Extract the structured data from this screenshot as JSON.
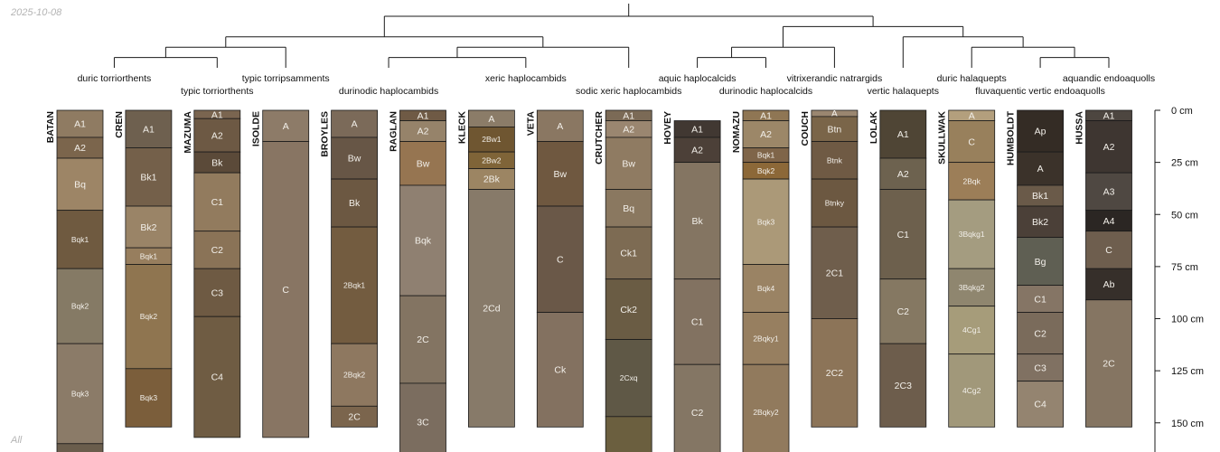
{
  "meta": {
    "date": "2025-10-08",
    "corner_label": "All"
  },
  "axis": {
    "max_depth_cm": 168,
    "ticks": [
      0,
      25,
      50,
      75,
      100,
      125,
      150
    ],
    "unit": "cm"
  },
  "dendrogram": {
    "leaves": [
      {
        "id": "duric_torriorthents",
        "label": "duric torriorthents",
        "level": 1,
        "members": [
          "BATAN",
          "CREN"
        ]
      },
      {
        "id": "typic_torriorthents",
        "label": "typic torriorthents",
        "level": 2,
        "members": [
          "MAZUMA"
        ]
      },
      {
        "id": "typic_torripsamments",
        "label": "typic torripsamments",
        "level": 1,
        "members": [
          "ISOLDE"
        ]
      },
      {
        "id": "durinodic_haplocambids",
        "label": "durinodic haplocambids",
        "level": 2,
        "members": [
          "BROYLES",
          "RAGLAN"
        ]
      },
      {
        "id": "xeric_haplocambids",
        "label": "xeric haplocambids",
        "level": 1,
        "members": [
          "KLECK",
          "VETA"
        ]
      },
      {
        "id": "sodic_xeric_haplocambids",
        "label": "sodic xeric haplocambids",
        "level": 2,
        "members": [
          "CRUTCHER"
        ]
      },
      {
        "id": "aquic_haplocalcids",
        "label": "aquic haplocalcids",
        "level": 1,
        "members": [
          "HOVEY"
        ]
      },
      {
        "id": "durinodic_haplocalcids",
        "label": "durinodic haplocalcids",
        "level": 2,
        "members": [
          "NOMAZU"
        ]
      },
      {
        "id": "vitrixerandic_natrargids",
        "label": "vitrixerandic natrargids",
        "level": 1,
        "members": [
          "COUCH"
        ]
      },
      {
        "id": "vertic_halaquepts",
        "label": "vertic halaquepts",
        "level": 2,
        "members": [
          "LOLAK"
        ]
      },
      {
        "id": "duric_halaquepts",
        "label": "duric halaquepts",
        "level": 1,
        "members": [
          "SKULLWAK"
        ]
      },
      {
        "id": "fluvaquentic_vertic_endoaquolls",
        "label": "fluvaquentic vertic endoaquolls",
        "level": 2,
        "members": [
          "HUMBOLDT"
        ]
      },
      {
        "id": "aquandic_endoaquolls",
        "label": "aquandic endoaquolls",
        "level": 1,
        "members": [
          "HUSSA"
        ]
      }
    ],
    "tree": [
      [
        [
          [
            [
              "duric_torriorthents"
            ],
            [
              "typic_torriorthents"
            ]
          ],
          [
            "typic_torripsamments"
          ]
        ],
        [
          [
            [
              "durinodic_haplocambids"
            ],
            [
              "xeric_haplocambids"
            ]
          ],
          [
            "sodic_xeric_haplocambids"
          ]
        ]
      ],
      [
        [
          [
            [
              "aquic_haplocalcids"
            ],
            [
              "durinodic_haplocalcids"
            ]
          ],
          [
            "vitrixerandic_natrargids"
          ]
        ],
        [
          [
            "vertic_halaquepts"
          ],
          [
            [
              "duric_halaquepts"
            ],
            [
              [
                "fluvaquentic_vertic_endoaquolls"
              ],
              [
                "aquandic_endoaquolls"
              ]
            ]
          ]
        ]
      ]
    ]
  },
  "profiles": [
    {
      "name": "BATAN",
      "horizons": [
        {
          "name": "A1",
          "top": 0,
          "bottom": 13,
          "color": "#8f7b62"
        },
        {
          "name": "A2",
          "top": 13,
          "bottom": 23,
          "color": "#7b654c"
        },
        {
          "name": "Bq",
          "top": 23,
          "bottom": 48,
          "color": "#9d8566"
        },
        {
          "name": "Bqk1",
          "top": 48,
          "bottom": 76,
          "color": "#6f5a40"
        },
        {
          "name": "Bqk2",
          "top": 76,
          "bottom": 112,
          "color": "#857a65"
        },
        {
          "name": "Bqk3",
          "top": 112,
          "bottom": 160,
          "color": "#8b7b68"
        },
        {
          "name": "",
          "top": 160,
          "bottom": 168,
          "color": "#6a5d4c"
        }
      ]
    },
    {
      "name": "CREN",
      "horizons": [
        {
          "name": "A1",
          "top": 0,
          "bottom": 18,
          "color": "#6e604f"
        },
        {
          "name": "Bk1",
          "top": 18,
          "bottom": 46,
          "color": "#74604a"
        },
        {
          "name": "Bk2",
          "top": 46,
          "bottom": 66,
          "color": "#9a8467"
        },
        {
          "name": "Bqk1",
          "top": 66,
          "bottom": 74,
          "color": "#977e5e"
        },
        {
          "name": "Bqk2",
          "top": 74,
          "bottom": 124,
          "color": "#8f7550"
        },
        {
          "name": "Bqk3",
          "top": 124,
          "bottom": 152,
          "color": "#7b5e3b"
        }
      ]
    },
    {
      "name": "MAZUMA",
      "horizons": [
        {
          "name": "A1",
          "top": 0,
          "bottom": 4,
          "color": "#7a6550"
        },
        {
          "name": "A2",
          "top": 4,
          "bottom": 20,
          "color": "#6d5944"
        },
        {
          "name": "Bk",
          "top": 20,
          "bottom": 30,
          "color": "#5b4a39"
        },
        {
          "name": "C1",
          "top": 30,
          "bottom": 58,
          "color": "#927b5e"
        },
        {
          "name": "C2",
          "top": 58,
          "bottom": 76,
          "color": "#8a7357"
        },
        {
          "name": "C3",
          "top": 76,
          "bottom": 99,
          "color": "#6e5a43"
        },
        {
          "name": "C4",
          "top": 99,
          "bottom": 157,
          "color": "#6f5c43"
        }
      ]
    },
    {
      "name": "ISOLDE",
      "horizons": [
        {
          "name": "A",
          "top": 0,
          "bottom": 15,
          "color": "#8d7b68"
        },
        {
          "name": "C",
          "top": 15,
          "bottom": 157,
          "color": "#887563"
        }
      ]
    },
    {
      "name": "BROYLES",
      "horizons": [
        {
          "name": "A",
          "top": 0,
          "bottom": 13,
          "color": "#7b6a59"
        },
        {
          "name": "Bw",
          "top": 13,
          "bottom": 33,
          "color": "#675646"
        },
        {
          "name": "Bk",
          "top": 33,
          "bottom": 56,
          "color": "#6c5842"
        },
        {
          "name": "2Bqk1",
          "top": 56,
          "bottom": 112,
          "color": "#735c40"
        },
        {
          "name": "2Bqk2",
          "top": 112,
          "bottom": 142,
          "color": "#8e7860"
        },
        {
          "name": "2C",
          "top": 142,
          "bottom": 152,
          "color": "#7b654d"
        }
      ]
    },
    {
      "name": "RAGLAN",
      "horizons": [
        {
          "name": "A1",
          "top": 0,
          "bottom": 5,
          "color": "#6f5a45"
        },
        {
          "name": "A2",
          "top": 5,
          "bottom": 15,
          "color": "#96836a"
        },
        {
          "name": "Bw",
          "top": 15,
          "bottom": 36,
          "color": "#967551"
        },
        {
          "name": "Bqk",
          "top": 36,
          "bottom": 89,
          "color": "#8f8071"
        },
        {
          "name": "2C",
          "top": 89,
          "bottom": 131,
          "color": "#837462"
        },
        {
          "name": "3C",
          "top": 131,
          "bottom": 168,
          "color": "#7b6d5f"
        }
      ]
    },
    {
      "name": "KLECK",
      "horizons": [
        {
          "name": "A",
          "top": 0,
          "bottom": 8,
          "color": "#8b7c68"
        },
        {
          "name": "2Bw1",
          "top": 8,
          "bottom": 20,
          "color": "#6f5631"
        },
        {
          "name": "2Bw2",
          "top": 20,
          "bottom": 28,
          "color": "#7f6438"
        },
        {
          "name": "2Bk",
          "top": 28,
          "bottom": 38,
          "color": "#9c8563"
        },
        {
          "name": "2Cd",
          "top": 38,
          "bottom": 152,
          "color": "#877a69"
        }
      ]
    },
    {
      "name": "VETA",
      "horizons": [
        {
          "name": "A",
          "top": 0,
          "bottom": 15,
          "color": "#8a7762"
        },
        {
          "name": "Bw",
          "top": 15,
          "bottom": 46,
          "color": "#6f5840"
        },
        {
          "name": "C",
          "top": 46,
          "bottom": 97,
          "color": "#6a5848"
        },
        {
          "name": "Ck",
          "top": 97,
          "bottom": 152,
          "color": "#837160"
        }
      ]
    },
    {
      "name": "CRUTCHER",
      "horizons": [
        {
          "name": "A1",
          "top": 0,
          "bottom": 5,
          "color": "#7b6a56"
        },
        {
          "name": "A2",
          "top": 5,
          "bottom": 13,
          "color": "#9a8670"
        },
        {
          "name": "Bw",
          "top": 13,
          "bottom": 38,
          "color": "#8f7b62"
        },
        {
          "name": "Bq",
          "top": 38,
          "bottom": 56,
          "color": "#8a7860"
        },
        {
          "name": "Ck1",
          "top": 56,
          "bottom": 81,
          "color": "#7d6b53"
        },
        {
          "name": "Ck2",
          "top": 81,
          "bottom": 110,
          "color": "#6a5c44"
        },
        {
          "name": "2Cxq",
          "top": 110,
          "bottom": 147,
          "color": "#5f5846"
        },
        {
          "name": "",
          "top": 147,
          "bottom": 168,
          "color": "#6b5f3f"
        }
      ]
    },
    {
      "name": "HOVEY",
      "horizons": [
        {
          "name": "A1",
          "top": 5,
          "bottom": 13,
          "color": "#413832"
        },
        {
          "name": "A2",
          "top": 13,
          "bottom": 25,
          "color": "#4c4038"
        },
        {
          "name": "Bk",
          "top": 25,
          "bottom": 81,
          "color": "#847562"
        },
        {
          "name": "C1",
          "top": 81,
          "bottom": 122,
          "color": "#827261"
        },
        {
          "name": "C2",
          "top": 122,
          "bottom": 168,
          "color": "#847664"
        }
      ]
    },
    {
      "name": "NOMAZU",
      "horizons": [
        {
          "name": "A1",
          "top": 0,
          "bottom": 5,
          "color": "#8f7654"
        },
        {
          "name": "A2",
          "top": 5,
          "bottom": 18,
          "color": "#9c8768"
        },
        {
          "name": "Bqk1",
          "top": 18,
          "bottom": 25,
          "color": "#7f6549"
        },
        {
          "name": "Bqk2",
          "top": 25,
          "bottom": 33,
          "color": "#8c6838"
        },
        {
          "name": "Bqk3",
          "top": 33,
          "bottom": 74,
          "color": "#ab9978"
        },
        {
          "name": "Bqk4",
          "top": 74,
          "bottom": 97,
          "color": "#9a8364"
        },
        {
          "name": "2Bqky1",
          "top": 97,
          "bottom": 122,
          "color": "#977f60"
        },
        {
          "name": "2Bqky2",
          "top": 122,
          "bottom": 168,
          "color": "#917a5d"
        }
      ]
    },
    {
      "name": "COUCH",
      "horizons": [
        {
          "name": "A",
          "top": 0,
          "bottom": 3,
          "color": "#9a8670"
        },
        {
          "name": "Btn",
          "top": 3,
          "bottom": 15,
          "color": "#7a6549"
        },
        {
          "name": "Btnk",
          "top": 15,
          "bottom": 33,
          "color": "#6f5a44"
        },
        {
          "name": "Btnky",
          "top": 33,
          "bottom": 56,
          "color": "#6c5841"
        },
        {
          "name": "2C1",
          "top": 56,
          "bottom": 100,
          "color": "#6f5e4c"
        },
        {
          "name": "2C2",
          "top": 100,
          "bottom": 152,
          "color": "#8c7458"
        }
      ]
    },
    {
      "name": "LOLAK",
      "horizons": [
        {
          "name": "A1",
          "top": 0,
          "bottom": 23,
          "color": "#4f4535"
        },
        {
          "name": "A2",
          "top": 23,
          "bottom": 38,
          "color": "#6d624f"
        },
        {
          "name": "C1",
          "top": 38,
          "bottom": 81,
          "color": "#6d604d"
        },
        {
          "name": "C2",
          "top": 81,
          "bottom": 112,
          "color": "#857862"
        },
        {
          "name": "2C3",
          "top": 112,
          "bottom": 152,
          "color": "#6d5d4c"
        }
      ]
    },
    {
      "name": "SKULLWAK",
      "horizons": [
        {
          "name": "A",
          "top": 0,
          "bottom": 5,
          "color": "#b39f7d"
        },
        {
          "name": "C",
          "top": 5,
          "bottom": 25,
          "color": "#98805c"
        },
        {
          "name": "2Bqk",
          "top": 25,
          "bottom": 43,
          "color": "#9c7e58"
        },
        {
          "name": "3Bqkg1",
          "top": 43,
          "bottom": 76,
          "color": "#a49c80"
        },
        {
          "name": "3Bqkg2",
          "top": 76,
          "bottom": 94,
          "color": "#8f866f"
        },
        {
          "name": "4Cg1",
          "top": 94,
          "bottom": 117,
          "color": "#a69c7a"
        },
        {
          "name": "4Cg2",
          "top": 117,
          "bottom": 152,
          "color": "#a1987a"
        }
      ]
    },
    {
      "name": "HUMBOLDT",
      "horizons": [
        {
          "name": "Ap",
          "top": 0,
          "bottom": 20,
          "color": "#342c25"
        },
        {
          "name": "A",
          "top": 20,
          "bottom": 36,
          "color": "#3b322a"
        },
        {
          "name": "Bk1",
          "top": 36,
          "bottom": 46,
          "color": "#6a5a49"
        },
        {
          "name": "Bk2",
          "top": 46,
          "bottom": 61,
          "color": "#4b4038"
        },
        {
          "name": "Bg",
          "top": 61,
          "bottom": 84,
          "color": "#5f5f53"
        },
        {
          "name": "C1",
          "top": 84,
          "bottom": 97,
          "color": "#857565"
        },
        {
          "name": "C2",
          "top": 97,
          "bottom": 117,
          "color": "#7a6b5b"
        },
        {
          "name": "C3",
          "top": 117,
          "bottom": 130,
          "color": "#807162"
        },
        {
          "name": "C4",
          "top": 130,
          "bottom": 152,
          "color": "#948470"
        }
      ]
    },
    {
      "name": "HUSSA",
      "horizons": [
        {
          "name": "A1",
          "top": 0,
          "bottom": 5,
          "color": "#4d4640"
        },
        {
          "name": "A2",
          "top": 5,
          "bottom": 30,
          "color": "#3e3631"
        },
        {
          "name": "A3",
          "top": 30,
          "bottom": 48,
          "color": "#4f4842"
        },
        {
          "name": "A4",
          "top": 48,
          "bottom": 58,
          "color": "#2b2623"
        },
        {
          "name": "C",
          "top": 58,
          "bottom": 76,
          "color": "#6e5e4e"
        },
        {
          "name": "Ab",
          "top": 76,
          "bottom": 91,
          "color": "#362f2a"
        },
        {
          "name": "2C",
          "top": 91,
          "bottom": 152,
          "color": "#857562"
        }
      ]
    }
  ]
}
